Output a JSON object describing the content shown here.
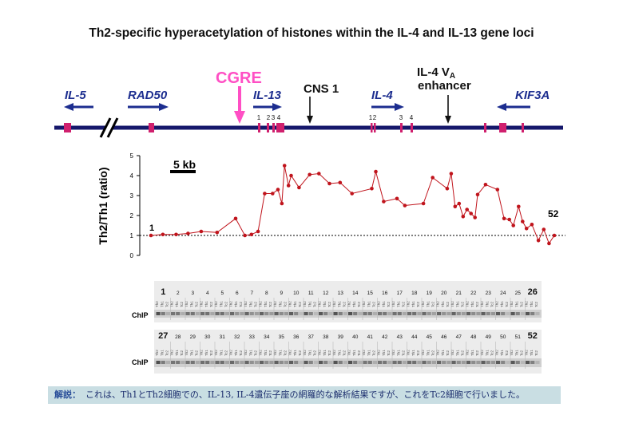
{
  "title": "Th2-specific hyperacetylation of histones within the IL-4 and IL-13 gene loci",
  "genes": [
    {
      "label": "IL-5",
      "dir": "left"
    },
    {
      "label": "RAD50",
      "dir": "right"
    },
    {
      "label": "IL-13",
      "dir": "right"
    },
    {
      "label": "IL-4",
      "dir": "right"
    },
    {
      "label": "KIF3A",
      "dir": "left"
    }
  ],
  "markers": {
    "cgre": "CGRE",
    "cns1": "CNS 1",
    "il4_va_line1_main": "IL-4 V",
    "il4_va_line1_sub": "A",
    "il4_va_line2": "enhancer"
  },
  "exon_numbers": {
    "il13": [
      "1",
      "2",
      "3",
      "4"
    ],
    "il4": [
      "1",
      "2",
      "3",
      "4"
    ]
  },
  "colors": {
    "locus_line": "#16186b",
    "exon": "#d0206e",
    "cgre": "#ff4fc4",
    "gene_label": "#1c2d8f",
    "data": "#c0141c",
    "caption_bg": "#c9dee3"
  },
  "chart_data": {
    "type": "line",
    "ylabel": "Th2/Th1 (ratio)",
    "ylim": [
      0,
      5
    ],
    "yticks": [
      "0",
      "1",
      "2",
      "3",
      "4",
      "5"
    ],
    "scale_bar": "5 kb",
    "baseline": 1,
    "first_label": "1",
    "last_label": "52",
    "x": [
      0,
      1.8,
      3.8,
      5.6,
      7.6,
      10,
      12.8,
      14.2,
      15.2,
      16.2,
      17.2,
      18.4,
      19.2,
      19.8,
      20.2,
      20.8,
      21.2,
      22.4,
      24,
      25.4,
      27,
      28.6,
      30.4,
      33.4,
      34,
      35.2,
      37.2,
      38.4,
      41.2,
      42.6,
      44.8,
      45.4,
      46,
      46.6,
      47.2,
      47.8,
      48.4,
      49,
      49.4,
      50.6,
      52.4,
      53.4,
      54.2,
      54.8,
      55.6,
      56.2,
      56.8,
      57.6,
      58.6,
      59.4,
      60.2,
      61
    ],
    "values": [
      1.0,
      1.05,
      1.05,
      1.1,
      1.2,
      1.15,
      1.85,
      1.0,
      1.05,
      1.2,
      3.1,
      3.1,
      3.3,
      2.6,
      4.5,
      3.5,
      4.0,
      3.4,
      4.05,
      4.1,
      3.6,
      3.65,
      3.1,
      3.35,
      4.2,
      2.7,
      2.85,
      2.5,
      2.6,
      3.9,
      3.35,
      4.1,
      2.45,
      2.6,
      1.95,
      2.3,
      2.1,
      1.9,
      3.05,
      3.55,
      3.3,
      1.85,
      1.8,
      1.5,
      2.45,
      1.7,
      1.35,
      1.55,
      0.75,
      1.3,
      0.6,
      1.0
    ]
  },
  "gel": {
    "row_label": "ChIP",
    "lanes": [
      "Th2",
      "Th1",
      "Tc2"
    ],
    "panel1_ids": [
      "1",
      "2",
      "3",
      "4",
      "5",
      "6",
      "7",
      "8",
      "9",
      "10",
      "11",
      "12",
      "13",
      "14",
      "15",
      "16",
      "17",
      "18",
      "19",
      "20",
      "21",
      "22",
      "23",
      "24",
      "25",
      "26"
    ],
    "panel2_ids": [
      "27",
      "28",
      "29",
      "30",
      "31",
      "32",
      "33",
      "34",
      "35",
      "36",
      "37",
      "38",
      "39",
      "40",
      "41",
      "42",
      "43",
      "44",
      "45",
      "46",
      "47",
      "48",
      "49",
      "50",
      "51",
      "52"
    ]
  },
  "caption": {
    "lead": "解説：",
    "text": "これは、Th1とTh2細胞での、IL-13, IL-4遺伝子座の網羅的な解析結果ですが、これをTc2細胞で行いました。"
  }
}
